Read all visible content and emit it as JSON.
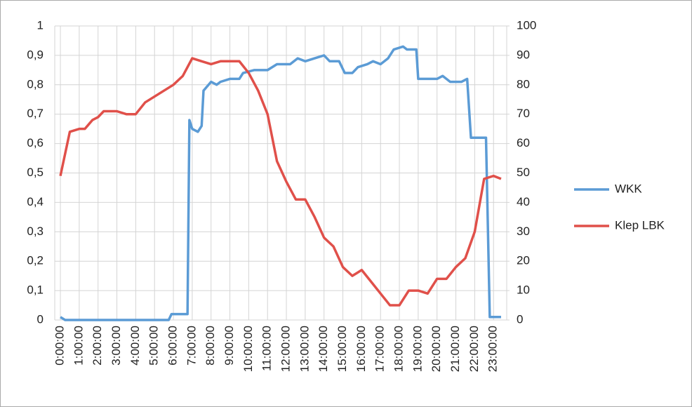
{
  "chart_data": {
    "type": "line",
    "x": [
      0,
      0.25,
      5.75,
      5.9,
      6.75,
      6.85,
      7.0,
      7.3,
      7.5,
      7.6,
      8.0,
      8.3,
      8.5,
      9.0,
      9.5,
      9.7,
      10.3,
      11.0,
      11.5,
      12.2,
      12.6,
      13.0,
      13.5,
      14.0,
      14.3,
      14.8,
      15.1,
      15.5,
      15.8,
      16.3,
      16.6,
      17.0,
      17.4,
      17.7,
      18.2,
      18.4,
      18.9,
      19.0,
      20.0,
      20.3,
      20.7,
      21.3,
      21.6,
      21.8,
      22.6,
      22.8,
      23.4
    ],
    "series": [
      {
        "name": "WKK",
        "color": "#5b9bd5",
        "axis": "y",
        "values": [
          0.01,
          0.0,
          0.0,
          0.02,
          0.02,
          0.68,
          0.65,
          0.64,
          0.66,
          0.78,
          0.81,
          0.8,
          0.81,
          0.82,
          0.82,
          0.84,
          0.85,
          0.85,
          0.87,
          0.87,
          0.89,
          0.88,
          0.89,
          0.9,
          0.88,
          0.88,
          0.84,
          0.84,
          0.86,
          0.87,
          0.88,
          0.87,
          0.89,
          0.92,
          0.93,
          0.92,
          0.92,
          0.82,
          0.82,
          0.83,
          0.81,
          0.81,
          0.82,
          0.62,
          0.62,
          0.01,
          0.01
        ]
      },
      {
        "name": "Klep LBK",
        "color": "#e0504a",
        "axis": "y2",
        "x": [
          0,
          0.5,
          1.0,
          1.3,
          1.7,
          2.0,
          2.3,
          2.7,
          3.0,
          3.5,
          4.0,
          4.5,
          5.0,
          5.5,
          6.0,
          6.5,
          7.0,
          7.5,
          8.0,
          8.5,
          9.0,
          9.5,
          10.0,
          10.5,
          11.0,
          11.5,
          12.0,
          12.5,
          13.0,
          13.5,
          14.0,
          14.5,
          15.0,
          15.5,
          16.0,
          16.5,
          17.0,
          17.5,
          18.0,
          18.5,
          19.0,
          19.5,
          20.0,
          20.5,
          21.0,
          21.5,
          22.0,
          22.5,
          23.0,
          23.4
        ],
        "values": [
          49,
          64,
          65,
          65,
          68,
          69,
          71,
          71,
          71,
          70,
          70,
          74,
          76,
          78,
          80,
          83,
          89,
          88,
          87,
          88,
          88,
          88,
          84,
          78,
          70,
          54,
          47,
          41,
          41,
          35,
          28,
          25,
          18,
          15,
          17,
          13,
          9,
          5,
          5,
          10,
          10,
          9,
          14,
          14,
          18,
          21,
          30,
          48,
          49,
          48
        ]
      }
    ],
    "xlim": [
      -0.3,
      23.7
    ],
    "xticks": [
      {
        "value": 0,
        "label": "0:00:00"
      },
      {
        "value": 1,
        "label": "1:00:00"
      },
      {
        "value": 2,
        "label": "2:00:00"
      },
      {
        "value": 3,
        "label": "3:00:00"
      },
      {
        "value": 4,
        "label": "4:00:00"
      },
      {
        "value": 5,
        "label": "5:00:00"
      },
      {
        "value": 6,
        "label": "6:00:00"
      },
      {
        "value": 7,
        "label": "7:00:00"
      },
      {
        "value": 8,
        "label": "8:00:00"
      },
      {
        "value": 9,
        "label": "9:00:00"
      },
      {
        "value": 10,
        "label": "10:00:00"
      },
      {
        "value": 11,
        "label": "11:00:00"
      },
      {
        "value": 12,
        "label": "12:00:00"
      },
      {
        "value": 13,
        "label": "13:00:00"
      },
      {
        "value": 14,
        "label": "14:00:00"
      },
      {
        "value": 15,
        "label": "15:00:00"
      },
      {
        "value": 16,
        "label": "16:00:00"
      },
      {
        "value": 17,
        "label": "17:00:00"
      },
      {
        "value": 18,
        "label": "18:00:00"
      },
      {
        "value": 19,
        "label": "19:00:00"
      },
      {
        "value": 20,
        "label": "20:00:00"
      },
      {
        "value": 21,
        "label": "21:00:00"
      },
      {
        "value": 22,
        "label": "22:00:00"
      },
      {
        "value": 23,
        "label": "23:00:00"
      }
    ],
    "ylim": [
      0,
      1
    ],
    "yticks": [
      0,
      {
        "value": 0.1,
        "label": "0,1"
      },
      {
        "value": 0.2,
        "label": "0,2"
      },
      {
        "value": 0.3,
        "label": "0,3"
      },
      {
        "value": 0.4,
        "label": "0,4"
      },
      {
        "value": 0.5,
        "label": "0,5"
      },
      {
        "value": 0.6,
        "label": "0,6"
      },
      {
        "value": 0.7,
        "label": "0,7"
      },
      {
        "value": 0.8,
        "label": "0,8"
      },
      {
        "value": 0.9,
        "label": "0,9"
      },
      1
    ],
    "y2lim": [
      0,
      100
    ],
    "y2ticks": [
      0,
      10,
      20,
      30,
      40,
      50,
      60,
      70,
      80,
      90,
      100
    ],
    "grid": true,
    "legend": "right"
  }
}
